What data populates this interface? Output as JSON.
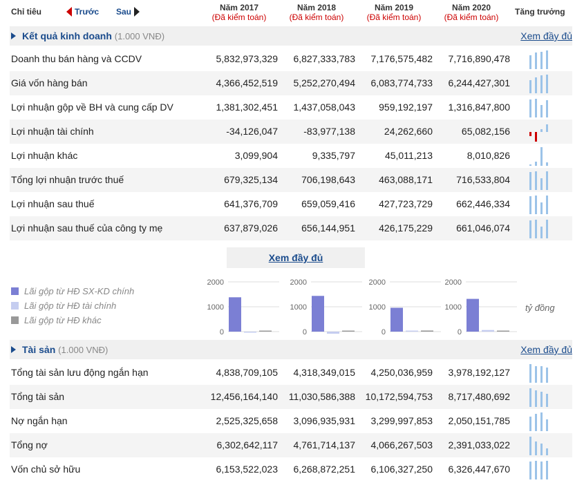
{
  "header": {
    "chitieu": "Chỉ tiêu",
    "prev": "Trước",
    "next": "Sau",
    "years": [
      {
        "year": "Năm 2017",
        "audit": "(Đã kiểm toán)"
      },
      {
        "year": "Năm 2018",
        "audit": "(Đã kiểm toán)"
      },
      {
        "year": "Năm 2019",
        "audit": "(Đã kiểm toán)"
      },
      {
        "year": "Năm 2020",
        "audit": "(Đã kiểm toán)"
      }
    ],
    "growth": "Tăng trưởng"
  },
  "section1": {
    "title": "Kết quả kinh doanh",
    "unit": "(1.000 VNĐ)",
    "full": "Xem đầy đủ",
    "rows": [
      {
        "name": "Doanh thu bán hàng và CCDV",
        "values": [
          "5,832,973,329",
          "6,827,333,783",
          "7,176,575,482",
          "7,716,890,478"
        ],
        "spark": [
          5832973329,
          6827333783,
          7176575482,
          7716890478
        ]
      },
      {
        "name": "Giá vốn hàng bán",
        "values": [
          "4,366,452,519",
          "5,252,270,494",
          "6,083,774,733",
          "6,244,427,301"
        ],
        "spark": [
          4366452519,
          5252270494,
          6083774733,
          6244427301
        ]
      },
      {
        "name": "Lợi nhuận gộp về BH và cung cấp DV",
        "values": [
          "1,381,302,451",
          "1,437,058,043",
          "959,192,197",
          "1,316,847,800"
        ],
        "spark": [
          1381302451,
          1437058043,
          959192197,
          1316847800
        ]
      },
      {
        "name": "Lợi nhuận tài chính",
        "values": [
          "-34,126,047",
          "-83,977,138",
          "24,262,660",
          "65,082,156"
        ],
        "spark": [
          -34126047,
          -83977138,
          24262660,
          65082156
        ]
      },
      {
        "name": "Lợi nhuận khác",
        "values": [
          "3,099,904",
          "9,335,797",
          "45,011,213",
          "8,010,826"
        ],
        "spark": [
          3099904,
          9335797,
          45011213,
          8010826
        ]
      },
      {
        "name": "Tổng lợi nhuận trước thuế",
        "values": [
          "679,325,134",
          "706,198,643",
          "463,088,171",
          "716,533,804"
        ],
        "spark": [
          679325134,
          706198643,
          463088171,
          716533804
        ]
      },
      {
        "name": "Lợi nhuận sau thuế",
        "values": [
          "641,376,709",
          "659,059,416",
          "427,723,729",
          "662,446,334"
        ],
        "spark": [
          641376709,
          659059416,
          427723729,
          662446334
        ]
      },
      {
        "name": "Lợi nhuận sau thuế của công ty mẹ",
        "values": [
          "637,879,026",
          "656,144,951",
          "426,175,229",
          "661,046,074"
        ],
        "spark": [
          637879026,
          656144951,
          426175229,
          661046074
        ]
      }
    ]
  },
  "mid_full": "Xem đầy đủ",
  "legend": [
    {
      "label": "Lãi gộp từ HĐ SX-KD chính",
      "color": "#7b7fd4"
    },
    {
      "label": "Lãi gộp từ HĐ tài chính",
      "color": "#c5cdf0"
    },
    {
      "label": "Lãi gộp từ HĐ khác",
      "color": "#999999"
    }
  ],
  "unit_label": "tỷ đồng",
  "colors": {
    "spark": "#9cc3e8",
    "spark_neg": "#cc0000",
    "accent": "#1a4b8c"
  },
  "chart_data": [
    {
      "type": "bar",
      "categories": [
        "Lãi gộp từ HĐ SX-KD chính",
        "Lãi gộp từ HĐ tài chính",
        "Lãi gộp từ HĐ khác"
      ],
      "values": [
        1381,
        -34,
        3
      ],
      "ylim": [
        0,
        2000
      ],
      "yticks": [
        "2000",
        "1000",
        "0"
      ]
    },
    {
      "type": "bar",
      "categories": [
        "Lãi gộp từ HĐ SX-KD chính",
        "Lãi gộp từ HĐ tài chính",
        "Lãi gộp từ HĐ khác"
      ],
      "values": [
        1437,
        -84,
        9
      ],
      "ylim": [
        0,
        2000
      ],
      "yticks": [
        "2000",
        "1000",
        "0"
      ]
    },
    {
      "type": "bar",
      "categories": [
        "Lãi gộp từ HĐ SX-KD chính",
        "Lãi gộp từ HĐ tài chính",
        "Lãi gộp từ HĐ khác"
      ],
      "values": [
        959,
        24,
        45
      ],
      "ylim": [
        0,
        2000
      ],
      "yticks": [
        "2000",
        "1000",
        "0"
      ]
    },
    {
      "type": "bar",
      "categories": [
        "Lãi gộp từ HĐ SX-KD chính",
        "Lãi gộp từ HĐ tài chính",
        "Lãi gộp từ HĐ khác"
      ],
      "values": [
        1317,
        65,
        8
      ],
      "ylim": [
        0,
        2000
      ],
      "yticks": [
        "2000",
        "1000",
        "0"
      ]
    }
  ],
  "section2": {
    "title": "Tài sản",
    "unit": "(1.000 VNĐ)",
    "full": "Xem đầy đủ",
    "rows": [
      {
        "name": "Tổng tài sản lưu động ngắn hạn",
        "values": [
          "4,838,709,105",
          "4,318,349,015",
          "4,250,036,959",
          "3,978,192,127"
        ],
        "spark": [
          4838709105,
          4318349015,
          4250036959,
          3978192127
        ]
      },
      {
        "name": "Tổng tài sản",
        "values": [
          "12,456,164,140",
          "11,030,586,388",
          "10,172,594,753",
          "8,717,480,692"
        ],
        "spark": [
          12456164140,
          11030586388,
          10172594753,
          8717480692
        ]
      },
      {
        "name": "Nợ ngắn hạn",
        "values": [
          "2,525,325,658",
          "3,096,935,931",
          "3,299,997,853",
          "2,050,151,785"
        ],
        "spark": [
          2525325658,
          3096935931,
          3299997853,
          2050151785
        ]
      },
      {
        "name": "Tổng nợ",
        "values": [
          "6,302,642,117",
          "4,761,714,137",
          "4,066,267,503",
          "2,391,033,022"
        ],
        "spark": [
          6302642117,
          4761714137,
          4066267503,
          2391033022
        ]
      },
      {
        "name": "Vốn chủ sở hữu",
        "values": [
          "6,153,522,023",
          "6,268,872,251",
          "6,106,327,250",
          "6,326,447,670"
        ],
        "spark": [
          6153522023,
          6268872251,
          6106327250,
          6326447670
        ]
      }
    ]
  }
}
